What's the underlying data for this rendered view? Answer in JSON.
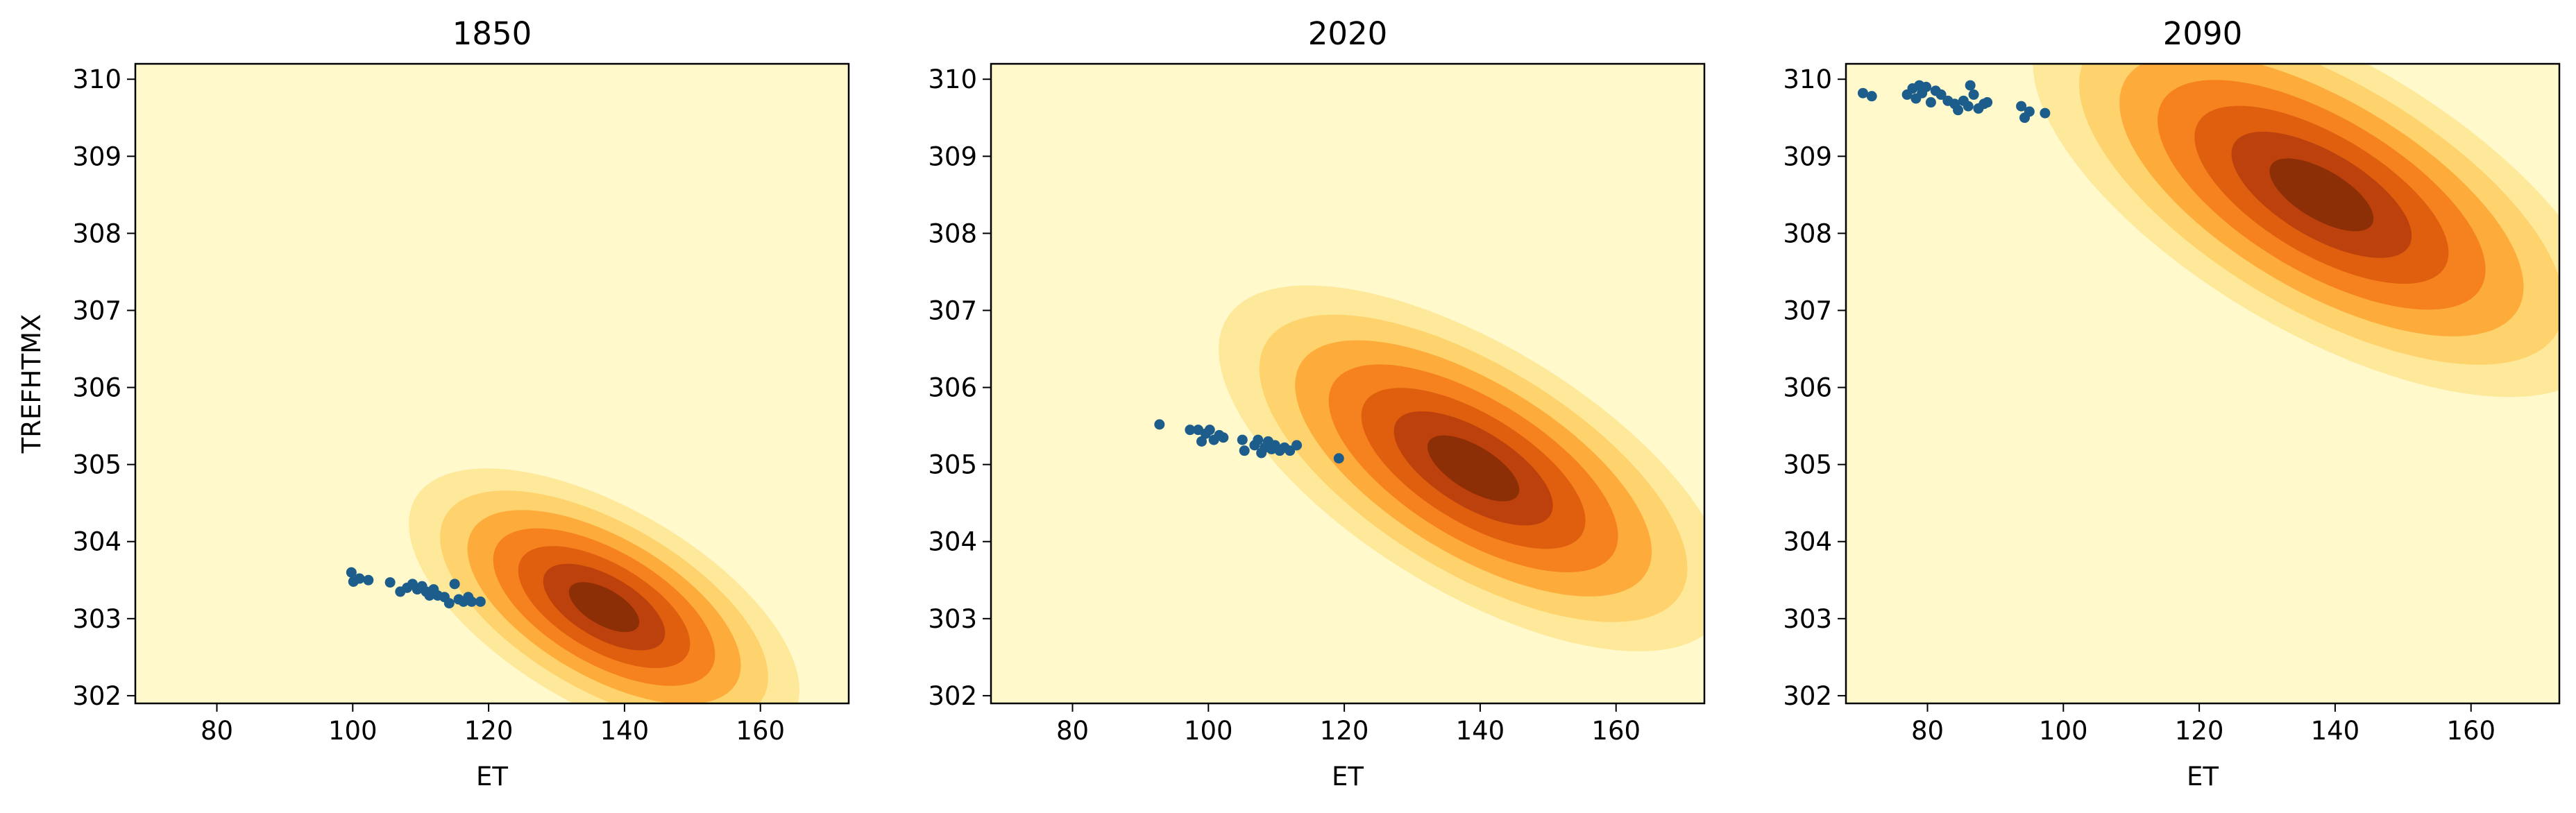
{
  "chart_data": [
    {
      "type": "kde-contour-scatter",
      "title": "1850",
      "xlabel": "ET",
      "ylabel": "TREFHTMX",
      "xlim": [
        68,
        173
      ],
      "ylim": [
        301.9,
        310.2
      ],
      "xticks": [
        80,
        100,
        120,
        140,
        160
      ],
      "yticks": [
        302,
        303,
        304,
        305,
        306,
        307,
        308,
        309,
        310
      ],
      "background_color": "#fff9cc",
      "marker_color": "#1c5d8c",
      "contour_colors": [
        "#fee99a",
        "#fed26c",
        "#fdac3c",
        "#f6821f",
        "#e05f0f",
        "#bc410c",
        "#8d2f06"
      ],
      "density": {
        "center": [
          137.0,
          303.15
        ],
        "sigma_x": 11.5,
        "sigma_y": 0.72,
        "rho": -0.6
      },
      "scatter_points": [
        [
          99.8,
          303.6
        ],
        [
          100.1,
          303.48
        ],
        [
          101.0,
          303.52
        ],
        [
          102.3,
          303.5
        ],
        [
          105.5,
          303.47
        ],
        [
          107.0,
          303.35
        ],
        [
          108.0,
          303.4
        ],
        [
          108.8,
          303.45
        ],
        [
          109.5,
          303.38
        ],
        [
          110.2,
          303.42
        ],
        [
          110.8,
          303.35
        ],
        [
          111.3,
          303.3
        ],
        [
          111.9,
          303.38
        ],
        [
          112.5,
          303.3
        ],
        [
          113.5,
          303.28
        ],
        [
          114.2,
          303.2
        ],
        [
          115.0,
          303.45
        ],
        [
          115.6,
          303.25
        ],
        [
          116.3,
          303.22
        ],
        [
          117.0,
          303.28
        ],
        [
          117.5,
          303.22
        ],
        [
          118.8,
          303.22
        ]
      ]
    },
    {
      "type": "kde-contour-scatter",
      "title": "2020",
      "xlabel": "ET",
      "ylabel": "",
      "xlim": [
        68,
        173
      ],
      "ylim": [
        301.9,
        310.2
      ],
      "xticks": [
        80,
        100,
        120,
        140,
        160
      ],
      "yticks": [
        302,
        303,
        304,
        305,
        306,
        307,
        308,
        309,
        310
      ],
      "background_color": "#fff9cc",
      "marker_color": "#1c5d8c",
      "contour_colors": [
        "#fee99a",
        "#fed26c",
        "#fdac3c",
        "#f6821f",
        "#e05f0f",
        "#bc410c",
        "#8d2f06"
      ],
      "density": {
        "center": [
          139.0,
          304.95
        ],
        "sigma_x": 15.0,
        "sigma_y": 0.95,
        "rho": -0.65
      },
      "scatter_points": [
        [
          92.8,
          305.52
        ],
        [
          97.3,
          305.45
        ],
        [
          98.5,
          305.45
        ],
        [
          99.0,
          305.3
        ],
        [
          99.6,
          305.4
        ],
        [
          100.2,
          305.45
        ],
        [
          100.8,
          305.32
        ],
        [
          101.6,
          305.38
        ],
        [
          102.2,
          305.35
        ],
        [
          105.0,
          305.32
        ],
        [
          105.3,
          305.18
        ],
        [
          106.8,
          305.25
        ],
        [
          107.3,
          305.32
        ],
        [
          107.8,
          305.15
        ],
        [
          108.3,
          305.22
        ],
        [
          108.8,
          305.3
        ],
        [
          109.3,
          305.2
        ],
        [
          109.8,
          305.25
        ],
        [
          110.5,
          305.18
        ],
        [
          111.2,
          305.22
        ],
        [
          112.0,
          305.18
        ],
        [
          113.0,
          305.25
        ],
        [
          119.2,
          305.08
        ]
      ]
    },
    {
      "type": "kde-contour-scatter",
      "title": "2090",
      "xlabel": "ET",
      "ylabel": "",
      "xlim": [
        68,
        173
      ],
      "ylim": [
        301.9,
        310.2
      ],
      "xticks": [
        80,
        100,
        120,
        140,
        160
      ],
      "yticks": [
        302,
        303,
        304,
        305,
        306,
        307,
        308,
        309,
        310
      ],
      "background_color": "#fff9cc",
      "marker_color": "#1c5d8c",
      "contour_colors": [
        "#fee99a",
        "#fed26c",
        "#fdac3c",
        "#f6821f",
        "#e05f0f",
        "#bc410c",
        "#8d2f06"
      ],
      "density": {
        "center": [
          138.0,
          308.5
        ],
        "sigma_x": 17.0,
        "sigma_y": 1.05,
        "rho": -0.65
      },
      "scatter_points": [
        [
          70.5,
          309.82
        ],
        [
          71.8,
          309.78
        ],
        [
          77.0,
          309.8
        ],
        [
          77.8,
          309.88
        ],
        [
          78.3,
          309.75
        ],
        [
          78.8,
          309.92
        ],
        [
          79.2,
          309.82
        ],
        [
          79.8,
          309.9
        ],
        [
          80.5,
          309.7
        ],
        [
          81.2,
          309.85
        ],
        [
          82.0,
          309.8
        ],
        [
          83.0,
          309.72
        ],
        [
          84.0,
          309.68
        ],
        [
          84.5,
          309.6
        ],
        [
          85.3,
          309.72
        ],
        [
          86.0,
          309.65
        ],
        [
          86.3,
          309.92
        ],
        [
          86.8,
          309.8
        ],
        [
          87.5,
          309.62
        ],
        [
          88.3,
          309.68
        ],
        [
          88.8,
          309.7
        ],
        [
          93.8,
          309.65
        ],
        [
          94.3,
          309.5
        ],
        [
          95.0,
          309.58
        ],
        [
          97.3,
          309.56
        ]
      ]
    }
  ]
}
